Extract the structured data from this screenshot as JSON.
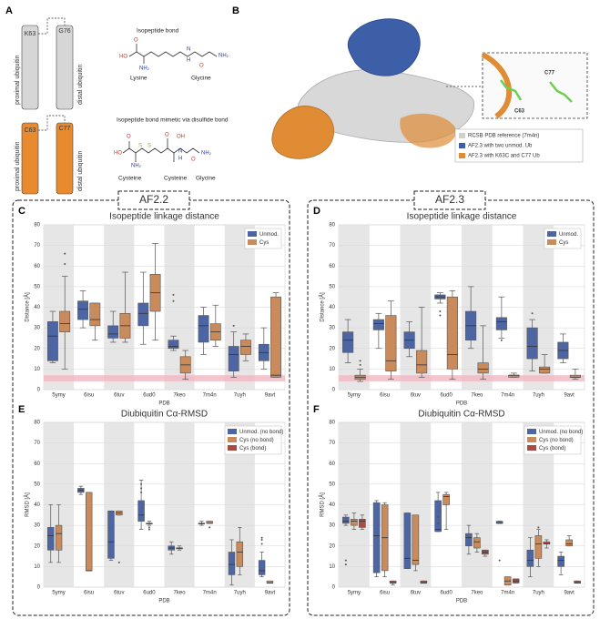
{
  "panel_a": {
    "label": "A",
    "k63": "K63",
    "g76": "G76",
    "proximal": "proximal ubiquitin",
    "distal": "distal ubiquitin",
    "c63": "C63",
    "c77": "C77",
    "bond_title": "Isopeptide bond",
    "lysine": "Lysine",
    "glycine": "Glycine",
    "mimetic_title": "Isopeptide bond mimetic via disulfide bond",
    "cysteine1": "Cysteine",
    "cysteine2": "Cysteine",
    "glycine2": "Glycine",
    "atoms": [
      "O",
      "HO",
      "NH₂",
      "H",
      "N",
      "O",
      "NH₂",
      "O",
      "HO",
      "S",
      "S",
      "O",
      "OH",
      "H",
      "N",
      "O",
      "NH₂",
      "NH₂"
    ]
  },
  "panel_b": {
    "label": "B",
    "legend": [
      "RCSB PDB reference (7m4n)",
      "AF2.3 with two unmod. Ub",
      "AF2.3 with K63C and C77 Ub"
    ],
    "inset_c63": "C63",
    "inset_c77": "C77"
  },
  "groups": [
    "AF2.2",
    "AF2.3"
  ],
  "chart_data": [
    {
      "type": "boxplot",
      "panel": "C",
      "title": "Isopeptide linkage distance",
      "xlabel": "PDB",
      "ylabel": "Distance [Å]",
      "categories": [
        "5ymy",
        "6isu",
        "6tuv",
        "6ud0",
        "7keo",
        "7m4n",
        "7uyh",
        "9avt"
      ],
      "ylim": [
        0,
        80
      ],
      "yticks": [
        0,
        10,
        20,
        30,
        40,
        50,
        60,
        70,
        80
      ],
      "band": [
        4,
        7
      ],
      "series": [
        {
          "name": "Unmod.",
          "color": "#4d66a3",
          "boxes": [
            [
              13,
              14,
              26,
              33,
              38
            ],
            [
              30,
              34,
              39,
              43,
              48
            ],
            [
              23,
              25,
              27,
              31,
              38
            ],
            [
              22,
              31,
              37,
              42,
              57
            ],
            [
              19,
              20,
              21,
              24,
              26
            ],
            [
              17,
              23,
              31,
              36,
              40
            ],
            [
              6,
              9,
              17,
              21,
              28
            ],
            [
              10,
              14,
              18,
              22,
              30
            ]
          ],
          "outliers": [
            [],
            [],
            [],
            [],
            [
              43,
              46
            ],
            [],
            [
              31
            ],
            []
          ]
        },
        {
          "name": "Cys",
          "color": "#c98a5c",
          "boxes": [
            [
              10,
              28,
              32,
              38,
              55
            ],
            [
              24,
              31,
              34,
              42,
              42
            ],
            [
              23,
              25,
              31,
              37,
              57
            ],
            [
              24,
              38,
              47,
              56,
              71
            ],
            [
              5,
              8,
              12,
              16,
              19
            ],
            [
              21,
              24,
              28,
              32,
              41
            ],
            [
              14,
              17,
              21,
              24,
              27
            ],
            [
              6,
              6,
              7,
              45,
              47
            ]
          ],
          "outliers": [
            [
              61,
              66
            ],
            [],
            [],
            [],
            [],
            [],
            [],
            []
          ]
        }
      ]
    },
    {
      "type": "boxplot",
      "panel": "D",
      "title": "Isopeptide linkage distance",
      "xlabel": "PDB",
      "ylabel": "Distance [Å]",
      "categories": [
        "5ymy",
        "6isu",
        "6tuv",
        "6ud0",
        "7keo",
        "7m4n",
        "7uyh",
        "9avt"
      ],
      "ylim": [
        0,
        80
      ],
      "yticks": [
        0,
        10,
        20,
        30,
        40,
        50,
        60,
        70,
        80
      ],
      "band": [
        4,
        7
      ],
      "series": [
        {
          "name": "Unmod.",
          "color": "#4d66a3",
          "boxes": [
            [
              13,
              18,
              24,
              28,
              34
            ],
            [
              20,
              29,
              32,
              34,
              37
            ],
            [
              16,
              20,
              24,
              28,
              33
            ],
            [
              42,
              44,
              45,
              46,
              47
            ],
            [
              20,
              24,
              31,
              38,
              50
            ],
            [
              25,
              29,
              33,
              35,
              45
            ],
            [
              9,
              15,
              21,
              30,
              34
            ],
            [
              13,
              15,
              19,
              23,
              27
            ]
          ],
          "outliers": [
            [],
            [],
            [],
            [
              36,
              38
            ],
            [],
            [
              24
            ],
            [
              37
            ],
            []
          ]
        },
        {
          "name": "Cys",
          "color": "#c98a5c",
          "boxes": [
            [
              4,
              5,
              6,
              7,
              10
            ],
            [
              5,
              9,
              14,
              36,
              43
            ],
            [
              6,
              8,
              12,
              19,
              40
            ],
            [
              5,
              10,
              17,
              45,
              48
            ],
            [
              5,
              8,
              10,
              13,
              31
            ],
            [
              6,
              6,
              7,
              7,
              8
            ],
            [
              8,
              8,
              10,
              11,
              17
            ],
            [
              5,
              6,
              6,
              7,
              10
            ]
          ],
          "outliers": [
            [
              12,
              14
            ],
            [],
            [],
            [],
            [],
            [],
            [],
            []
          ]
        }
      ]
    },
    {
      "type": "boxplot",
      "panel": "E",
      "title": "Diubiquitin Cα-RMSD",
      "xlabel": "PDB",
      "ylabel": "RMSD [Å]",
      "categories": [
        "5ymy",
        "6isu",
        "6tuv",
        "6ud0",
        "7keo",
        "7m4n",
        "7uyh",
        "9avt"
      ],
      "ylim": [
        0,
        80
      ],
      "yticks": [
        0,
        10,
        20,
        30,
        40,
        50,
        60,
        70,
        80
      ],
      "series": [
        {
          "name": "Unmod. (no bond)",
          "color": "#4d66a3",
          "boxes": [
            [
              12,
              18,
              25,
              29,
              40
            ],
            [
              45,
              46,
              47,
              48,
              49
            ],
            [
              13,
              14,
              22,
              37,
              37
            ],
            [
              28,
              32,
              35,
              42,
              52
            ],
            [
              16,
              18,
              19,
              20,
              22
            ],
            [
              30,
              31,
              31,
              31,
              32
            ],
            [
              1,
              6,
              11,
              17,
              23
            ],
            [
              5,
              6,
              8,
              13,
              17
            ]
          ],
          "outliers": [
            [],
            [],
            [],
            [
              46,
              48,
              50
            ],
            [],
            [],
            [],
            [
              21,
              23,
              24
            ]
          ]
        },
        {
          "name": "Cys (no bond)",
          "color": "#c98a5c",
          "boxes": [
            [
              12,
              18,
              26,
              30,
              40
            ],
            [
              8,
              8,
              8,
              46,
              46
            ],
            [
              35,
              35,
              36,
              37,
              37
            ],
            [
              30,
              31,
              31,
              31,
              32
            ],
            [
              18,
              19,
              19,
              19,
              20
            ],
            [
              31,
              31,
              31,
              32,
              32
            ],
            [
              6,
              10,
              17,
              22,
              29
            ],
            [
              2,
              2,
              2,
              3,
              3
            ]
          ],
          "outliers": [
            [],
            [],
            [
              12
            ],
            [
              28,
              29
            ],
            [],
            [
              29
            ],
            [],
            []
          ]
        },
        {
          "name": "Cys (bond)",
          "color": "#a94c45",
          "boxes": [
            null,
            null,
            null,
            null,
            null,
            null,
            null,
            null
          ],
          "outliers": [
            [],
            [],
            [],
            [],
            [],
            [],
            [],
            []
          ]
        }
      ]
    },
    {
      "type": "boxplot",
      "panel": "F",
      "title": "Diubiquitin Cα-RMSD",
      "xlabel": "PDB",
      "ylabel": "RMSD [Å]",
      "categories": [
        "5ymy",
        "6isu",
        "6tuv",
        "6ud0",
        "7keo",
        "7m4n",
        "7uyh",
        "9avt"
      ],
      "ylim": [
        0,
        80
      ],
      "yticks": [
        0,
        10,
        20,
        30,
        40,
        50,
        60,
        70,
        80
      ],
      "series": [
        {
          "name": "Unmod. (no bond)",
          "color": "#4d66a3",
          "boxes": [
            [
              30,
              31,
              32,
              34,
              35
            ],
            [
              5,
              7,
              25,
              41,
              42
            ],
            [
              9,
              9,
              14,
              36,
              36
            ],
            [
              27,
              27,
              28,
              42,
              46
            ],
            [
              16,
              20,
              24,
              26,
              30
            ],
            [
              31,
              31,
              31,
              32,
              32
            ],
            [
              5,
              10,
              13,
              18,
              24
            ],
            [
              6,
              10,
              13,
              15,
              17
            ]
          ],
          "outliers": [
            [
              11,
              13
            ],
            [],
            [],
            [
              31,
              34
            ],
            [],
            [
              13
            ],
            [],
            []
          ]
        },
        {
          "name": "Cys (no bond)",
          "color": "#c98a5c",
          "boxes": [
            [
              28,
              30,
              32,
              33,
              36
            ],
            [
              5,
              8,
              24,
              40,
              41
            ],
            [
              8,
              11,
              13,
              35,
              35
            ],
            [
              28,
              40,
              44,
              45,
              46
            ],
            [
              17,
              19,
              22,
              24,
              26
            ],
            [
              1,
              1,
              3,
              5,
              5
            ],
            [
              10,
              14,
              21,
              25,
              28
            ],
            [
              20,
              20,
              21,
              23,
              25
            ]
          ],
          "outliers": [
            [],
            [],
            [],
            [],
            [],
            [],
            [
              29
            ],
            []
          ]
        },
        {
          "name": "Cys (bond)",
          "color": "#a94c45",
          "boxes": [
            [
              28,
              29,
              32,
              33,
              35
            ],
            [
              1,
              2,
              2,
              3,
              3
            ],
            [
              2,
              2,
              2,
              3,
              3
            ],
            null,
            [
              15,
              16,
              17,
              18,
              18
            ],
            [
              2,
              2,
              3,
              4,
              4
            ],
            [
              19,
              21,
              21,
              22,
              23
            ],
            [
              2,
              2,
              2,
              3,
              3
            ]
          ],
          "outliers": [
            [],
            [],
            [],
            [],
            [],
            [],
            [],
            []
          ]
        }
      ]
    }
  ]
}
